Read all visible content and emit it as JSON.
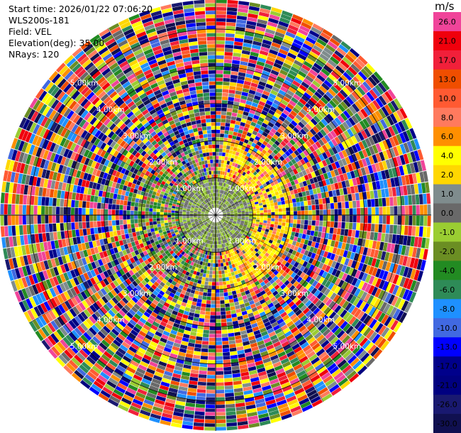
{
  "header": {
    "start_time": "Start time: 2026/01/22 07:06:20",
    "instrument": "WLS200s-181",
    "field": "Field: VEL",
    "elevation": "Elevation(deg): 35.00",
    "nrays": "NRays: 120"
  },
  "colorbar": {
    "unit": "m/s",
    "levels": [
      {
        "label": "26.0",
        "color": "#f0449a"
      },
      {
        "label": "21.0",
        "color": "#f0000c"
      },
      {
        "label": "17.0",
        "color": "#f1203a"
      },
      {
        "label": "13.0",
        "color": "#f04e00"
      },
      {
        "label": "10.0",
        "color": "#ff5a32"
      },
      {
        "label": "8.0",
        "color": "#ff7a5e"
      },
      {
        "label": "6.0",
        "color": "#ff8f00"
      },
      {
        "label": "4.0",
        "color": "#ffff00"
      },
      {
        "label": "2.0",
        "color": "#ffd700"
      },
      {
        "label": "1.0",
        "color": "#7f8c8d"
      },
      {
        "label": "0.0",
        "color": "#696969"
      },
      {
        "label": "-1.0",
        "color": "#9acd32"
      },
      {
        "label": "-2.0",
        "color": "#6b8e23"
      },
      {
        "label": "-4.0",
        "color": "#228b22"
      },
      {
        "label": "-6.0",
        "color": "#2e8b57"
      },
      {
        "label": "-8.0",
        "color": "#1e90ff"
      },
      {
        "label": "-10.0",
        "color": "#4169e1"
      },
      {
        "label": "-13.0",
        "color": "#0000ff"
      },
      {
        "label": "-17.0",
        "color": "#00008b"
      },
      {
        "label": "-21.0",
        "color": "#000080"
      },
      {
        "label": "-26.0",
        "color": "#191970"
      },
      {
        "label": "-30.0",
        "color": "#101050"
      }
    ]
  },
  "chart_data": {
    "type": "heatmap",
    "subtype": "radar-ppi",
    "field": "VEL",
    "unit": "m/s",
    "nrays": 120,
    "elevation_deg": 35.0,
    "range_ring_labels": [
      "1.00km",
      "2.00km",
      "3.00km",
      "4.00km",
      "5.00km"
    ],
    "range_rings_km": [
      1,
      2,
      3,
      4,
      5
    ],
    "max_range_km": 5.8,
    "center_note": "near-range gates (<1 km) grey/green (about -2 to 1 m/s); yellow (2 to 4 m/s) to the east at 1-2 km; outer gates noisy across the full scale"
  }
}
